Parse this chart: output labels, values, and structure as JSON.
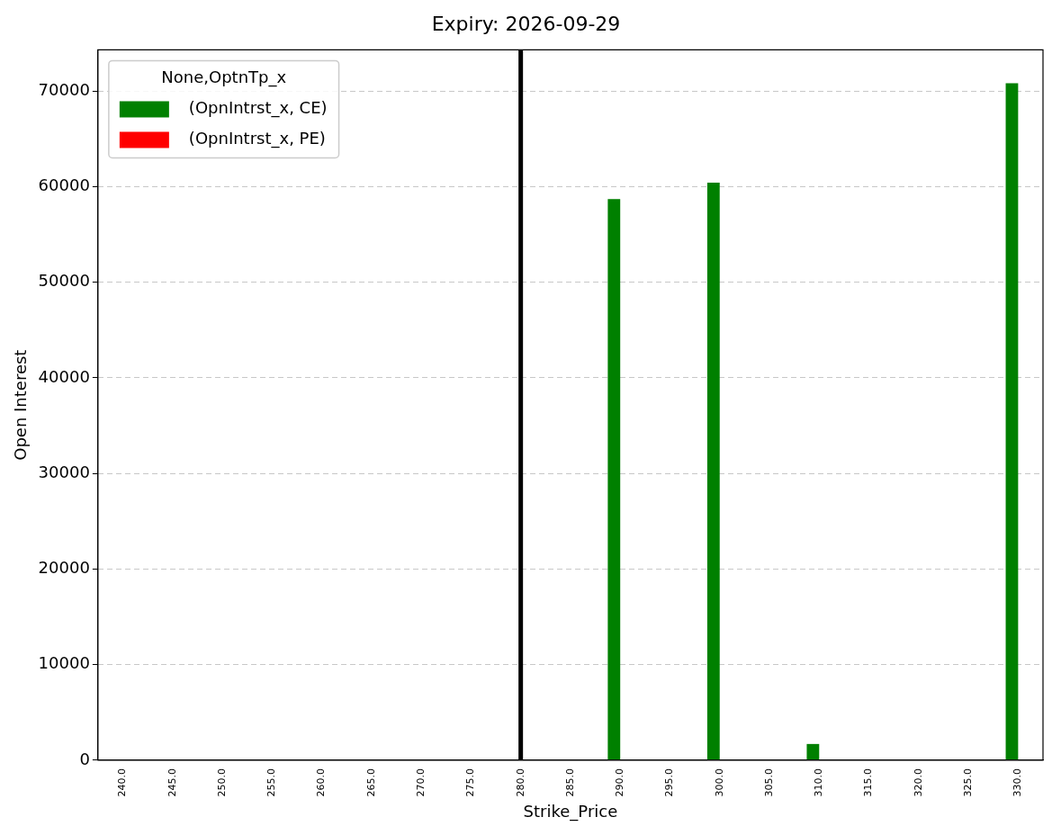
{
  "chart_data": {
    "type": "bar",
    "title": "Expiry: 2026-09-29",
    "xlabel": "Strike_Price",
    "ylabel": "Open Interest",
    "legend_title": "None,OptnTp_x",
    "categories": [
      "240.0",
      "245.0",
      "250.0",
      "255.0",
      "260.0",
      "265.0",
      "270.0",
      "275.0",
      "280.0",
      "285.0",
      "290.0",
      "295.0",
      "300.0",
      "305.0",
      "310.0",
      "315.0",
      "320.0",
      "325.0",
      "330.0"
    ],
    "series": [
      {
        "name": "(OpnIntrst_x, CE)",
        "color": "#008000",
        "values": [
          0,
          0,
          0,
          0,
          0,
          0,
          0,
          0,
          0,
          0,
          58700,
          0,
          60400,
          0,
          1700,
          0,
          0,
          0,
          70800
        ]
      },
      {
        "name": "(OpnIntrst_x, PE)",
        "color": "#ff0000",
        "values": [
          0,
          0,
          0,
          0,
          0,
          0,
          0,
          0,
          0,
          0,
          0,
          0,
          0,
          0,
          0,
          0,
          0,
          0,
          0
        ]
      }
    ],
    "ylim": [
      0,
      74300
    ],
    "yticks": [
      0,
      10000,
      20000,
      30000,
      40000,
      50000,
      60000,
      70000
    ],
    "grid": "y",
    "legend": "top left",
    "ref_lines": [
      {
        "axis": "x",
        "value": "280.0",
        "color": "#000000",
        "line_style": "solid"
      }
    ]
  }
}
